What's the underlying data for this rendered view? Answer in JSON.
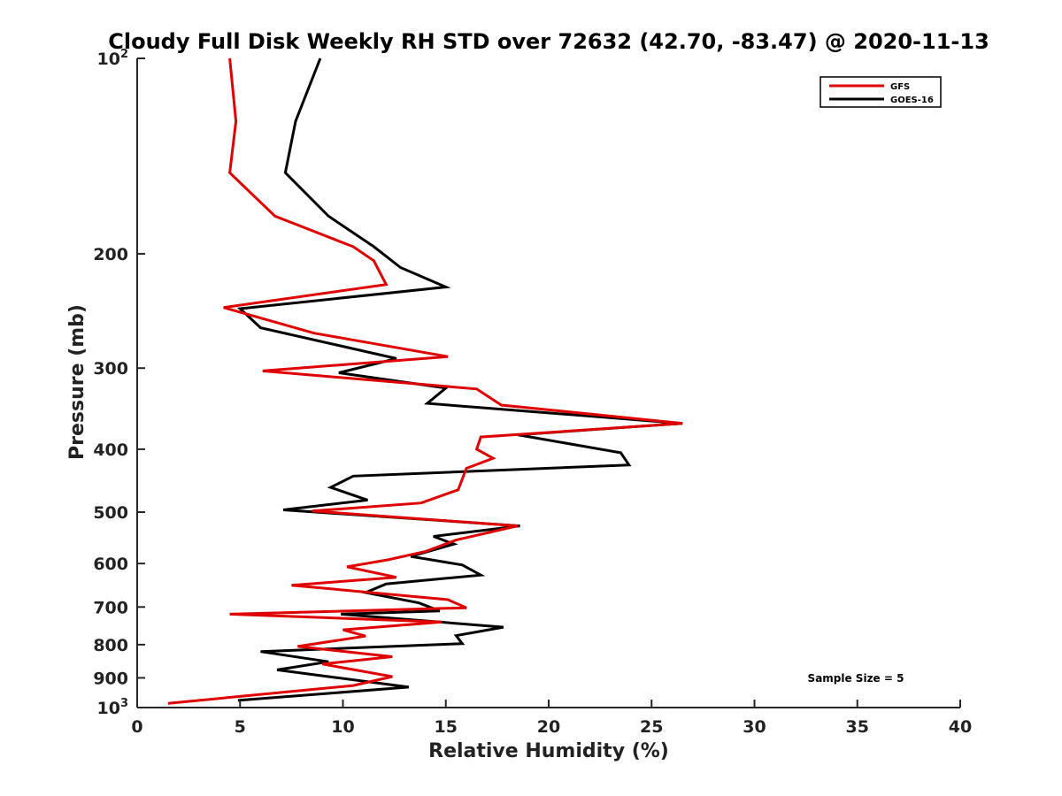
{
  "chart_data": {
    "type": "line",
    "title": "Cloudy Full Disk Weekly RH STD over 72632 (42.70, -83.47) @ 2020-11-13",
    "xlabel": "Relative Humidity (%)",
    "ylabel": "Pressure (mb)",
    "xlim": [
      0,
      40
    ],
    "ylim": [
      100,
      1000
    ],
    "y_scale": "log",
    "y_reversed": true,
    "x_ticks": [
      "0",
      "5",
      "10",
      "15",
      "20",
      "25",
      "30",
      "35",
      "40"
    ],
    "y_ticks": [
      {
        "value": 100,
        "base": "10",
        "exp": "2"
      },
      {
        "value": 200,
        "label": "200"
      },
      {
        "value": 300,
        "label": "300"
      },
      {
        "value": 400,
        "label": "400"
      },
      {
        "value": 500,
        "label": "500"
      },
      {
        "value": 600,
        "label": "600"
      },
      {
        "value": 700,
        "label": "700"
      },
      {
        "value": 800,
        "label": "800"
      },
      {
        "value": 900,
        "label": "900"
      },
      {
        "value": 1000,
        "base": "10",
        "exp": "3"
      }
    ],
    "grid": false,
    "legend_position": "top-right",
    "annotation": "Sample Size = 5",
    "series": [
      {
        "name": "GFS",
        "color": "#e00000",
        "points": [
          [
            4.5,
            100
          ],
          [
            4.8,
            125
          ],
          [
            4.5,
            150
          ],
          [
            6.7,
            175
          ],
          [
            10.5,
            195
          ],
          [
            11.5,
            205
          ],
          [
            12.1,
            223
          ],
          [
            4.2,
            242
          ],
          [
            8.6,
            265
          ],
          [
            15.1,
            288
          ],
          [
            6.1,
            303
          ],
          [
            16.5,
            323
          ],
          [
            17.7,
            342
          ],
          [
            26.5,
            365
          ],
          [
            16.7,
            383
          ],
          [
            16.5,
            400
          ],
          [
            17.3,
            413
          ],
          [
            16.0,
            428
          ],
          [
            15.6,
            462
          ],
          [
            13.8,
            484
          ],
          [
            8.5,
            498
          ],
          [
            18.5,
            525
          ],
          [
            15.5,
            552
          ],
          [
            14.0,
            575
          ],
          [
            12.2,
            592
          ],
          [
            10.2,
            607
          ],
          [
            12.6,
            630
          ],
          [
            7.5,
            648
          ],
          [
            15.1,
            682
          ],
          [
            16.0,
            702
          ],
          [
            4.5,
            718
          ],
          [
            14.8,
            738
          ],
          [
            10.0,
            759
          ],
          [
            11.1,
            776
          ],
          [
            7.8,
            805
          ],
          [
            12.4,
            835
          ],
          [
            9.0,
            857
          ],
          [
            12.4,
            896
          ],
          [
            10.5,
            925
          ],
          [
            1.5,
            985
          ]
        ]
      },
      {
        "name": "GOES-16",
        "color": "#000000",
        "points": [
          [
            8.9,
            100
          ],
          [
            7.7,
            125
          ],
          [
            7.2,
            150
          ],
          [
            9.3,
            175
          ],
          [
            11.5,
            195
          ],
          [
            12.8,
            210
          ],
          [
            15.0,
            225
          ],
          [
            5.0,
            243
          ],
          [
            6.0,
            260
          ],
          [
            12.6,
            290
          ],
          [
            9.8,
            305
          ],
          [
            15.0,
            322
          ],
          [
            14.1,
            340
          ],
          [
            26.5,
            365
          ],
          [
            18.5,
            380
          ],
          [
            23.5,
            405
          ],
          [
            23.9,
            423
          ],
          [
            10.5,
            440
          ],
          [
            9.4,
            458
          ],
          [
            11.2,
            479
          ],
          [
            7.1,
            496
          ],
          [
            18.6,
            525
          ],
          [
            14.4,
            545
          ],
          [
            15.4,
            560
          ],
          [
            13.3,
            585
          ],
          [
            15.8,
            603
          ],
          [
            16.7,
            625
          ],
          [
            12.1,
            645
          ],
          [
            11.1,
            665
          ],
          [
            13.7,
            690
          ],
          [
            14.7,
            710
          ],
          [
            9.9,
            718
          ],
          [
            17.8,
            752
          ],
          [
            15.5,
            775
          ],
          [
            15.8,
            797
          ],
          [
            6.0,
            820
          ],
          [
            9.3,
            850
          ],
          [
            6.8,
            875
          ],
          [
            13.2,
            930
          ],
          [
            4.9,
            975
          ]
        ]
      }
    ]
  }
}
